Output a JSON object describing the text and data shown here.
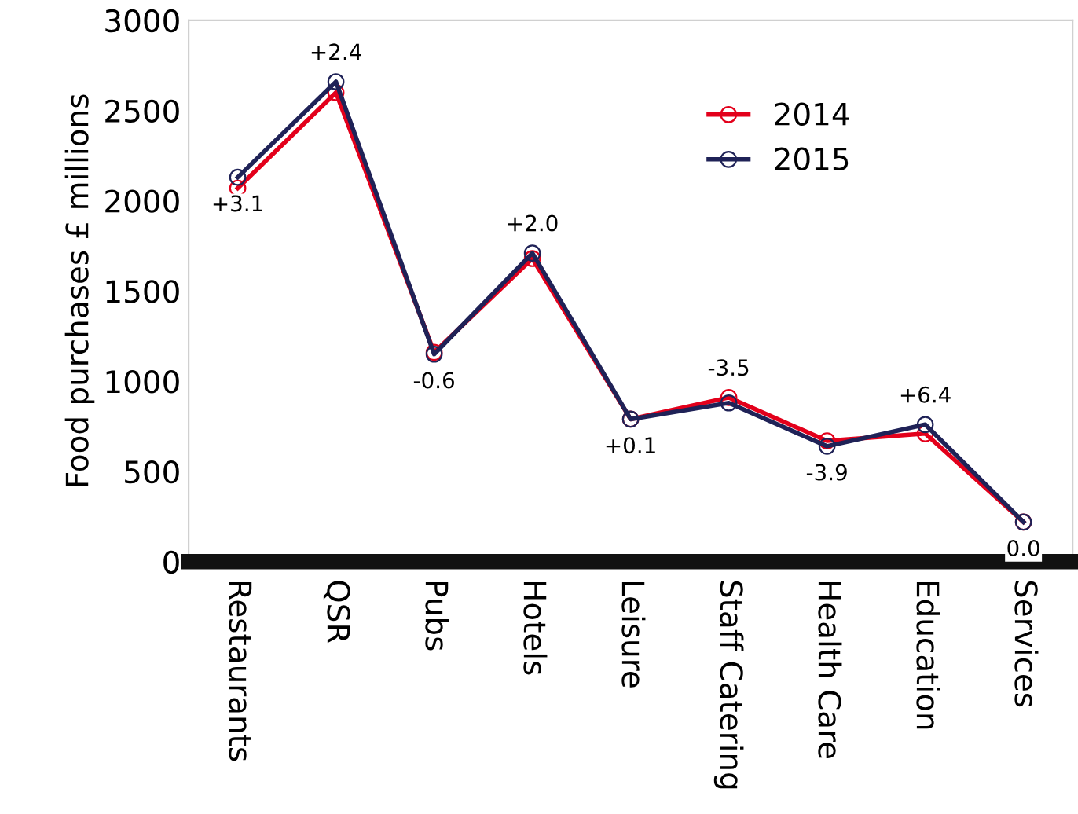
{
  "chart_data": {
    "type": "line",
    "ylabel": "Food purchases £ millions",
    "categories": [
      "Restaurants",
      "QSR",
      "Pubs",
      "Hotels",
      "Leisure",
      "Staff Catering",
      "Health Care",
      "Education",
      "Services"
    ],
    "series": [
      {
        "name": "2014",
        "color": "#e3001b",
        "values": [
          2070,
          2600,
          1160,
          1680,
          790,
          910,
          670,
          710,
          220
        ]
      },
      {
        "name": "2015",
        "color": "#1f2257",
        "values": [
          2130,
          2660,
          1150,
          1710,
          790,
          880,
          640,
          760,
          220
        ]
      }
    ],
    "annotations": [
      {
        "text": "+3.1",
        "x": "Restaurants",
        "y": 2130
      },
      {
        "text": "+2.4",
        "x": "QSR",
        "y": 2660
      },
      {
        "text": "-0.6",
        "x": "Pubs",
        "y": 1150
      },
      {
        "text": "+2.0",
        "x": "Hotels",
        "y": 1710
      },
      {
        "text": "+0.1",
        "x": "Leisure",
        "y": 790
      },
      {
        "text": "-3.5",
        "x": "Staff Catering",
        "y": 910
      },
      {
        "text": "-3.9",
        "x": "Health Care",
        "y": 640
      },
      {
        "text": "+6.4",
        "x": "Education",
        "y": 760
      },
      {
        "text": "0.0",
        "x": "Services",
        "y": 220
      }
    ],
    "ylim": [
      0,
      3000
    ],
    "yticks": [
      0,
      500,
      1000,
      1500,
      2000,
      2500,
      3000
    ],
    "grid": false,
    "legend": "top right",
    "marker": "circle",
    "line_style": "solid"
  }
}
